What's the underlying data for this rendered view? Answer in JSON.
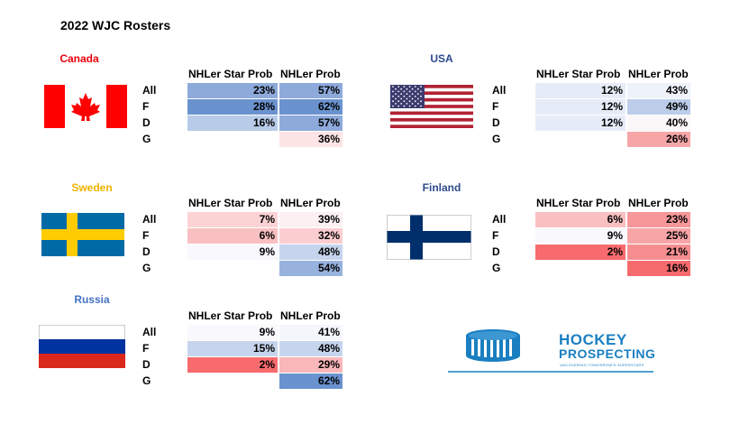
{
  "title": "2022 WJC Rosters",
  "header_star": "NHLer Star Prob",
  "header_nhler": "NHLer Prob",
  "row_labels": [
    "All",
    "F",
    "D",
    "G"
  ],
  "chart_data": {
    "type": "table",
    "title": "2022 WJC Rosters",
    "columns": [
      "NHLer Star Prob",
      "NHLer Prob"
    ],
    "rows": [
      "All",
      "F",
      "D",
      "G"
    ],
    "countries": [
      {
        "name": "Canada",
        "name_color": "#e8000b",
        "star": [
          "23%",
          "28%",
          "16%",
          ""
        ],
        "nhler": [
          "57%",
          "62%",
          "57%",
          "36%"
        ],
        "star_bg": [
          "#8eaadb",
          "#6a92cf",
          "#b8cbe8",
          ""
        ],
        "nhler_bg": [
          "#8eaadb",
          "#6a92cf",
          "#8eaadb",
          "#fde4e5"
        ]
      },
      {
        "name": "USA",
        "name_color": "#2e4a8e",
        "star": [
          "12%",
          "12%",
          "12%",
          ""
        ],
        "nhler": [
          "43%",
          "49%",
          "40%",
          "26%"
        ],
        "star_bg": [
          "#e6ecf7",
          "#e6ecf7",
          "#e6ecf7",
          ""
        ],
        "nhler_bg": [
          "#eef2f9",
          "#bccde9",
          "#fbf6f8",
          "#f7a6a8"
        ]
      },
      {
        "name": "Sweden",
        "name_color": "#f0b400",
        "star": [
          "7%",
          "6%",
          "9%",
          ""
        ],
        "nhler": [
          "39%",
          "32%",
          "48%",
          "54%"
        ],
        "star_bg": [
          "#fbd3d5",
          "#f9c0c2",
          "#f8f8fd",
          ""
        ],
        "nhler_bg": [
          "#fdf0f2",
          "#fbcdd0",
          "#c6d5ed",
          "#98b2de"
        ]
      },
      {
        "name": "Finland",
        "name_color": "#2e4a8e",
        "star": [
          "6%",
          "9%",
          "2%",
          ""
        ],
        "nhler": [
          "23%",
          "25%",
          "21%",
          "16%"
        ],
        "star_bg": [
          "#f9c0c2",
          "#f8f8fd",
          "#f76b6e",
          ""
        ],
        "nhler_bg": [
          "#f7979a",
          "#f8a5a7",
          "#f68e91",
          "#f56a6d"
        ]
      },
      {
        "name": "Russia",
        "name_color": "#4472c4",
        "star": [
          "9%",
          "15%",
          "2%",
          ""
        ],
        "nhler": [
          "41%",
          "48%",
          "29%",
          "62%"
        ],
        "star_bg": [
          "#f8f8fd",
          "#c6d5ed",
          "#f76b6e",
          ""
        ],
        "nhler_bg": [
          "#f4f6fb",
          "#c6d5ed",
          "#fab7b9",
          "#6a92cf"
        ]
      }
    ]
  },
  "logo": {
    "line1": "HOCKEY",
    "line2": "PROSPECTING",
    "tagline": "UNCOVERING TOMORROW'S SUPERSTARS",
    "color": "#1a7fc1"
  }
}
